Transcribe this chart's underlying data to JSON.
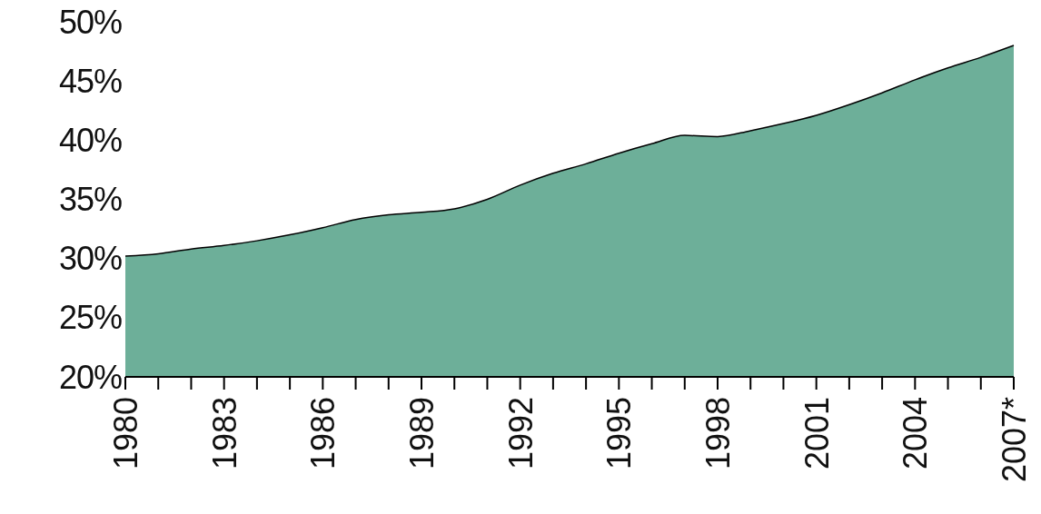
{
  "chart_data": {
    "type": "area",
    "categories": [
      "1980",
      null,
      null,
      "1983",
      null,
      null,
      "1986",
      null,
      null,
      "1989",
      null,
      null,
      "1992",
      null,
      null,
      "1995",
      null,
      null,
      "1998",
      null,
      null,
      "2001",
      null,
      null,
      "2004",
      null,
      null,
      "2007*"
    ],
    "series": [
      {
        "color": "#6daf99",
        "values": [
          30.2,
          30.4,
          30.8,
          31.1,
          31.5,
          32.0,
          32.6,
          33.3,
          33.7,
          33.9,
          34.2,
          35.0,
          36.2,
          37.2,
          38.0,
          38.9,
          39.7,
          40.4,
          40.3,
          40.8,
          41.4,
          42.1,
          43.0,
          44.0,
          45.1,
          46.1,
          47.0,
          48.0
        ]
      }
    ],
    "ylim": [
      20,
      50
    ],
    "yticks": [
      {
        "value": 20,
        "label": "20%"
      },
      {
        "value": 25,
        "label": "25%"
      },
      {
        "value": 30,
        "label": "30%"
      },
      {
        "value": 35,
        "label": "35%"
      },
      {
        "value": 40,
        "label": "40%"
      },
      {
        "value": 45,
        "label": "45%"
      },
      {
        "value": 50,
        "label": "50%"
      }
    ],
    "grid": false
  }
}
